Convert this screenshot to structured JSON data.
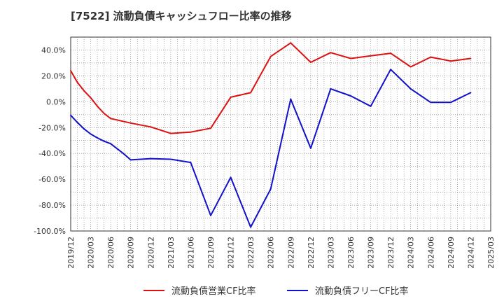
{
  "chart_data": {
    "type": "line",
    "title": "[7522]  流動負債キャッシュフロー比率の推移",
    "xlabel": "",
    "ylabel": "",
    "ylim": [
      -100,
      50
    ],
    "y_ticks": [
      {
        "value": 40,
        "label": "40.0%"
      },
      {
        "value": 20,
        "label": "20.0%"
      },
      {
        "value": 0,
        "label": "0.0%"
      },
      {
        "value": -20,
        "label": "-20.0%"
      },
      {
        "value": -40,
        "label": "-40.0%"
      },
      {
        "value": -60,
        "label": "-60.0%"
      },
      {
        "value": -80,
        "label": "-80.0%"
      },
      {
        "value": -100,
        "label": "-100.0%"
      }
    ],
    "x_ticks": [
      "2019/12",
      "2020/03",
      "2020/06",
      "2020/09",
      "2020/12",
      "2021/03",
      "2021/06",
      "2021/09",
      "2021/12",
      "2022/03",
      "2022/06",
      "2022/09",
      "2022/12",
      "2023/03",
      "2023/06",
      "2023/09",
      "2023/12",
      "2024/03",
      "2024/06",
      "2024/09",
      "2024/12",
      "2025/03"
    ],
    "grid": true,
    "legend_position": "bottom",
    "series": [
      {
        "name": "流動負債営業CF比率",
        "color": "#dd1111",
        "points": [
          [
            "2019/12",
            24.0
          ],
          [
            "2020/01",
            15.0
          ],
          [
            "2020/02",
            8.5
          ],
          [
            "2020/03",
            3.0
          ],
          [
            "2020/04",
            -3.5
          ],
          [
            "2020/05",
            -9.0
          ],
          [
            "2020/06",
            -13.0
          ],
          [
            "2020/09",
            -16.5
          ],
          [
            "2020/12",
            -19.5
          ],
          [
            "2021/03",
            -24.5
          ],
          [
            "2021/06",
            -23.5
          ],
          [
            "2021/09",
            -20.5
          ],
          [
            "2021/12",
            3.5
          ],
          [
            "2022/03",
            7.0
          ],
          [
            "2022/06",
            35.0
          ],
          [
            "2022/09",
            45.5
          ],
          [
            "2022/12",
            30.5
          ],
          [
            "2023/03",
            38.0
          ],
          [
            "2023/06",
            33.5
          ],
          [
            "2023/09",
            35.5
          ],
          [
            "2023/12",
            37.5
          ],
          [
            "2024/03",
            27.0
          ],
          [
            "2024/06",
            34.5
          ],
          [
            "2024/09",
            31.5
          ],
          [
            "2024/12",
            33.5
          ]
        ]
      },
      {
        "name": "流動負債フリーCF比率",
        "color": "#1111cc",
        "points": [
          [
            "2019/12",
            -10.5
          ],
          [
            "2020/01",
            -16.0
          ],
          [
            "2020/02",
            -21.0
          ],
          [
            "2020/03",
            -25.0
          ],
          [
            "2020/04",
            -28.0
          ],
          [
            "2020/05",
            -30.5
          ],
          [
            "2020/06",
            -32.5
          ],
          [
            "2020/07",
            -36.5
          ],
          [
            "2020/08",
            -40.5
          ],
          [
            "2020/09",
            -45.0
          ],
          [
            "2020/12",
            -44.0
          ],
          [
            "2021/03",
            -44.5
          ],
          [
            "2021/06",
            -47.0
          ],
          [
            "2021/09",
            -88.0
          ],
          [
            "2021/12",
            -58.5
          ],
          [
            "2022/03",
            -97.0
          ],
          [
            "2022/06",
            -67.5
          ],
          [
            "2022/09",
            2.0
          ],
          [
            "2022/12",
            -36.0
          ],
          [
            "2023/03",
            10.0
          ],
          [
            "2023/06",
            4.5
          ],
          [
            "2023/09",
            -3.5
          ],
          [
            "2023/12",
            25.0
          ],
          [
            "2024/03",
            10.0
          ],
          [
            "2024/06",
            -0.5
          ],
          [
            "2024/09",
            -0.5
          ],
          [
            "2024/12",
            7.0
          ]
        ]
      }
    ]
  }
}
